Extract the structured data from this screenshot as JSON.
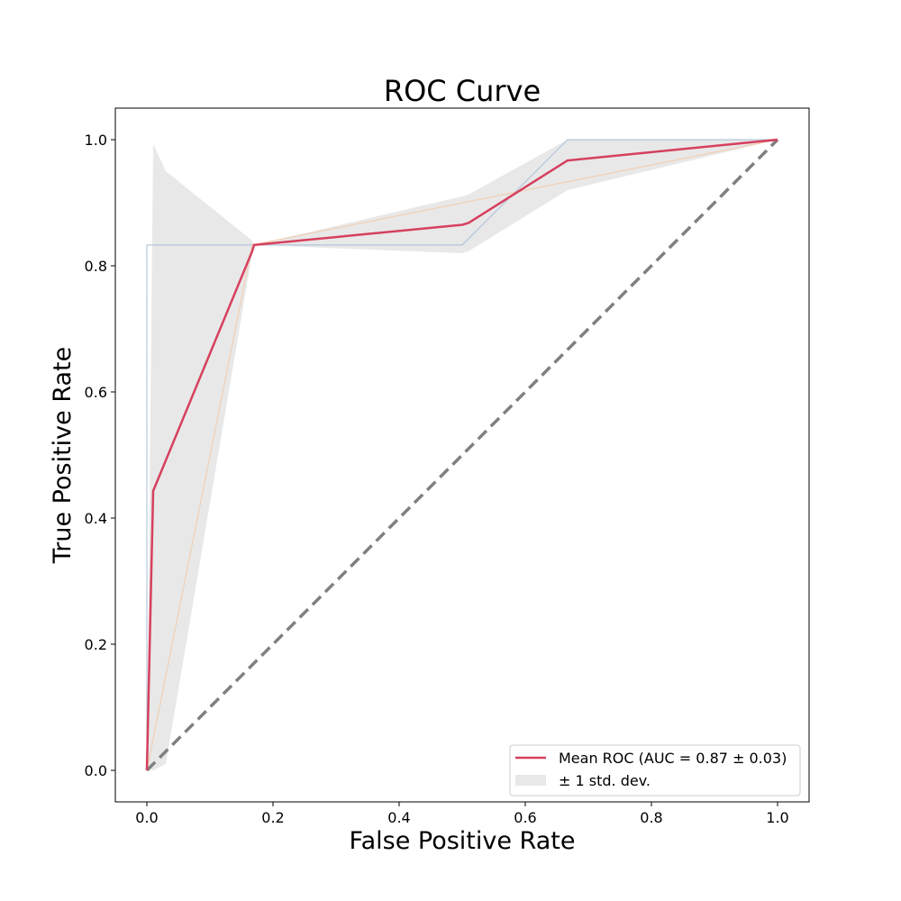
{
  "chart_data": {
    "type": "line",
    "title": "ROC Curve",
    "xlabel": "False Positive Rate",
    "ylabel": "True Positive Rate",
    "xlim": [
      -0.05,
      1.05
    ],
    "ylim": [
      -0.05,
      1.05
    ],
    "xticks": [
      0.0,
      0.2,
      0.4,
      0.6,
      0.8,
      1.0
    ],
    "yticks": [
      0.0,
      0.2,
      0.4,
      0.6,
      0.8,
      1.0
    ],
    "tick_labels": {
      "x": [
        "0.0",
        "0.2",
        "0.4",
        "0.6",
        "0.8",
        "1.0"
      ],
      "y": [
        "0.0",
        "0.2",
        "0.4",
        "0.6",
        "0.8",
        "1.0"
      ]
    },
    "grid": false,
    "legend_position": "lower-right",
    "series": [
      {
        "role": "fold",
        "color": "#a6bcd3",
        "x": [
          0.0,
          0.0,
          0.5,
          0.667,
          1.0
        ],
        "y": [
          0.0,
          0.833,
          0.833,
          1.0,
          1.0
        ]
      },
      {
        "role": "fold",
        "color": "#f2c9a6",
        "x": [
          0.0,
          0.167,
          1.0
        ],
        "y": [
          0.0,
          0.833,
          1.0
        ]
      },
      {
        "name": "Mean ROC (AUC = 0.87 ± 0.03)",
        "role": "mean",
        "color": "#d6405e",
        "x": [
          0.0,
          0.01,
          0.167,
          0.17,
          0.5,
          0.51,
          0.667,
          1.0
        ],
        "y": [
          0.0,
          0.443,
          0.823,
          0.833,
          0.865,
          0.868,
          0.967,
          1.0
        ]
      },
      {
        "role": "chance",
        "color": "#808080",
        "x": [
          0.0,
          1.0
        ],
        "y": [
          0.0,
          1.0
        ]
      }
    ],
    "band": {
      "name": "± 1 std. dev.",
      "color": "#d9d9d9",
      "x": [
        0.0,
        0.01,
        0.03,
        0.167,
        0.17,
        0.5,
        0.51,
        0.667,
        1.0
      ],
      "upper": [
        0.0,
        0.993,
        0.95,
        0.84,
        0.833,
        0.91,
        0.913,
        1.0,
        1.0
      ],
      "lower": [
        0.0,
        0.0,
        0.01,
        0.82,
        0.833,
        0.82,
        0.823,
        0.92,
        1.0
      ]
    }
  }
}
